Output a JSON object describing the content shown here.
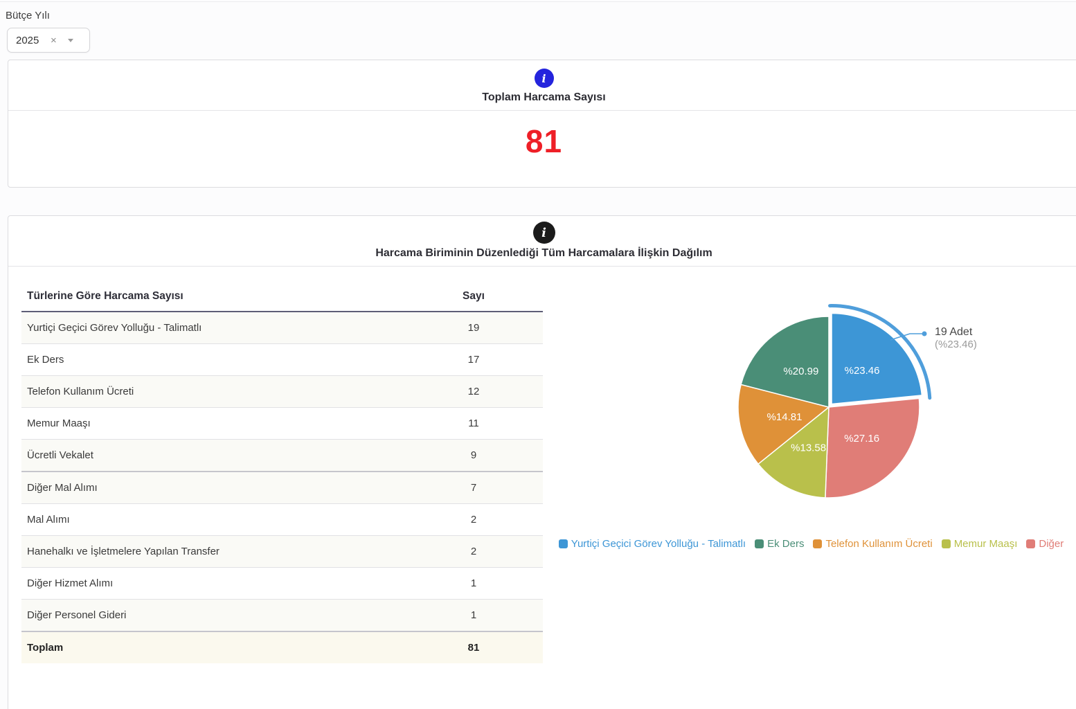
{
  "page": {
    "filter_label": "Bütçe Yılı",
    "filter_value": "2025",
    "filter_clear": "×"
  },
  "summary_card": {
    "title": "Toplam Harcama Sayısı",
    "value": "81",
    "value_color": "#ee1f27",
    "info_icon": "i",
    "info_icon_color": "#2424dd"
  },
  "distribution_card": {
    "title": "Harcama Biriminin Düzenlediği Tüm Harcamalara İlişkin Dağılım",
    "info_icon": "i",
    "info_icon_color": "#1b1b1b"
  },
  "table": {
    "col_type": "Türlerine Göre Harcama Sayısı",
    "col_count": "Sayı",
    "primary_rows": [
      {
        "label": "Yurtiçi Geçici Görev Yolluğu - Talimatlı",
        "value": "19"
      },
      {
        "label": "Ek Ders",
        "value": "17"
      },
      {
        "label": "Telefon Kullanım Ücreti",
        "value": "12"
      },
      {
        "label": "Memur Maaşı",
        "value": "11"
      },
      {
        "label": "Ücretli Vekalet",
        "value": "9"
      }
    ],
    "secondary_rows": [
      {
        "label": "Diğer Mal Alımı",
        "value": "7"
      },
      {
        "label": "Mal Alımı",
        "value": "2"
      },
      {
        "label": "Hanehalkı ve İşletmelere Yapılan Transfer",
        "value": "2"
      },
      {
        "label": "Diğer Hizmet Alımı",
        "value": "1"
      },
      {
        "label": "Diğer Personel Gideri",
        "value": "1"
      }
    ],
    "footer_label": "Toplam",
    "footer_value": "81"
  },
  "chart_data": {
    "type": "pie",
    "slices": [
      {
        "name": "Yurtiçi Geçici Görev Yolluğu - Talimatlı",
        "percent": 23.46,
        "label": "%23.46",
        "color": "#3d96d6",
        "selected": true
      },
      {
        "name": "Diğer",
        "percent": 27.16,
        "label": "%27.16",
        "color": "#e07d77",
        "selected": false
      },
      {
        "name": "Memur Maaşı",
        "percent": 13.58,
        "label": "%13.58",
        "color": "#b9c04b",
        "selected": false
      },
      {
        "name": "Telefon Kullanım Ücreti",
        "percent": 14.81,
        "label": "%14.81",
        "color": "#df9138",
        "selected": false
      },
      {
        "name": "Ek Ders",
        "percent": 20.99,
        "label": "%20.99",
        "color": "#4a8e77",
        "selected": false
      }
    ],
    "callout": {
      "line1": "19 Adet",
      "line2": "(%23.46)",
      "color": "#4f9edb"
    },
    "legend": [
      {
        "label": "Yurtiçi Geçici Görev Yolluğu - Talimatlı",
        "color": "#3d96d6"
      },
      {
        "label": "Ek Ders",
        "color": "#4a8e77"
      },
      {
        "label": "Telefon Kullanım Ücreti",
        "color": "#df9138"
      },
      {
        "label": "Memur Maaşı",
        "color": "#b9c04b"
      },
      {
        "label": "Diğer",
        "color": "#e07d77"
      }
    ],
    "legend_position": "bottom"
  }
}
